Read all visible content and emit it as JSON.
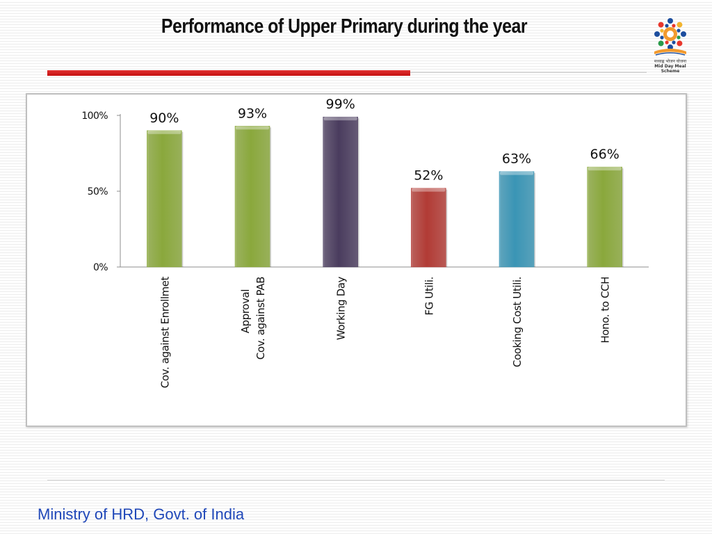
{
  "slide": {
    "title": "Performance of Upper Primary during the year",
    "footer": "Ministry of HRD, Govt. of India",
    "logo_caption": "मध्याह्न भोजन योजना",
    "logo_caption_en": "Mid Day Meal Scheme"
  },
  "colors": {
    "green": "#8aa83c",
    "purple": "#4a3c5e",
    "red": "#b23b35",
    "blue": "#3a95b5",
    "accent_red": "#d21f1f",
    "footer_blue": "#1f47b8"
  },
  "chart_data": {
    "type": "bar",
    "title": "",
    "xlabel": "",
    "ylabel": "",
    "ylim": [
      0,
      100
    ],
    "yticks": [
      "0%",
      "50%",
      "100%"
    ],
    "ytick_values": [
      0,
      50,
      100
    ],
    "grid": false,
    "legend": "none",
    "categories": [
      "Cov. against Enrollmet",
      "Cov. against PAB Approval",
      "Working Day",
      "FG Utili.",
      "Cooking Cost Utili.",
      "Hono. to CCH"
    ],
    "category_lines": [
      [
        "Cov. against Enrollmet"
      ],
      [
        "Cov. against PAB",
        "Approval"
      ],
      [
        "Working Day"
      ],
      [
        "FG Utili."
      ],
      [
        "Cooking Cost Utili."
      ],
      [
        "Hono. to CCH"
      ]
    ],
    "values": [
      90,
      93,
      99,
      52,
      63,
      66
    ],
    "data_labels": [
      "90%",
      "93%",
      "99%",
      "52%",
      "63%",
      "66%"
    ],
    "bar_colors": [
      "#8aa83c",
      "#8aa83c",
      "#4a3c5e",
      "#b23b35",
      "#3a95b5",
      "#8aa83c"
    ]
  }
}
